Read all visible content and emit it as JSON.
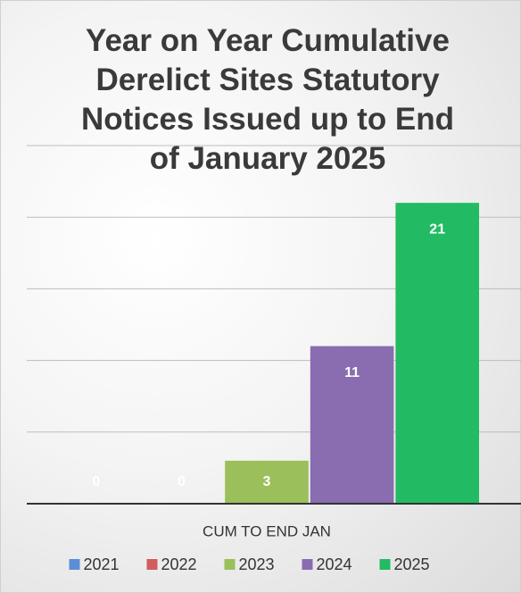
{
  "chart_data": {
    "type": "bar",
    "title": "Year on Year Cumulative Derelict Sites Statutory Notices Issued up to End of January 2025",
    "categories": [
      "CUM TO END JAN"
    ],
    "series": [
      {
        "name": "2021",
        "color": "#5b8ed6",
        "values": [
          0
        ]
      },
      {
        "name": "2022",
        "color": "#d25c5c",
        "values": [
          0
        ]
      },
      {
        "name": "2023",
        "color": "#9bbf5a",
        "values": [
          3
        ]
      },
      {
        "name": "2024",
        "color": "#8a6cb0",
        "values": [
          11
        ]
      },
      {
        "name": "2025",
        "color": "#22bb63",
        "values": [
          21
        ]
      }
    ],
    "ylim": [
      0,
      25
    ],
    "yticks": [
      0,
      5,
      10,
      15,
      20,
      25
    ],
    "grid": true,
    "legend": "bottom"
  }
}
